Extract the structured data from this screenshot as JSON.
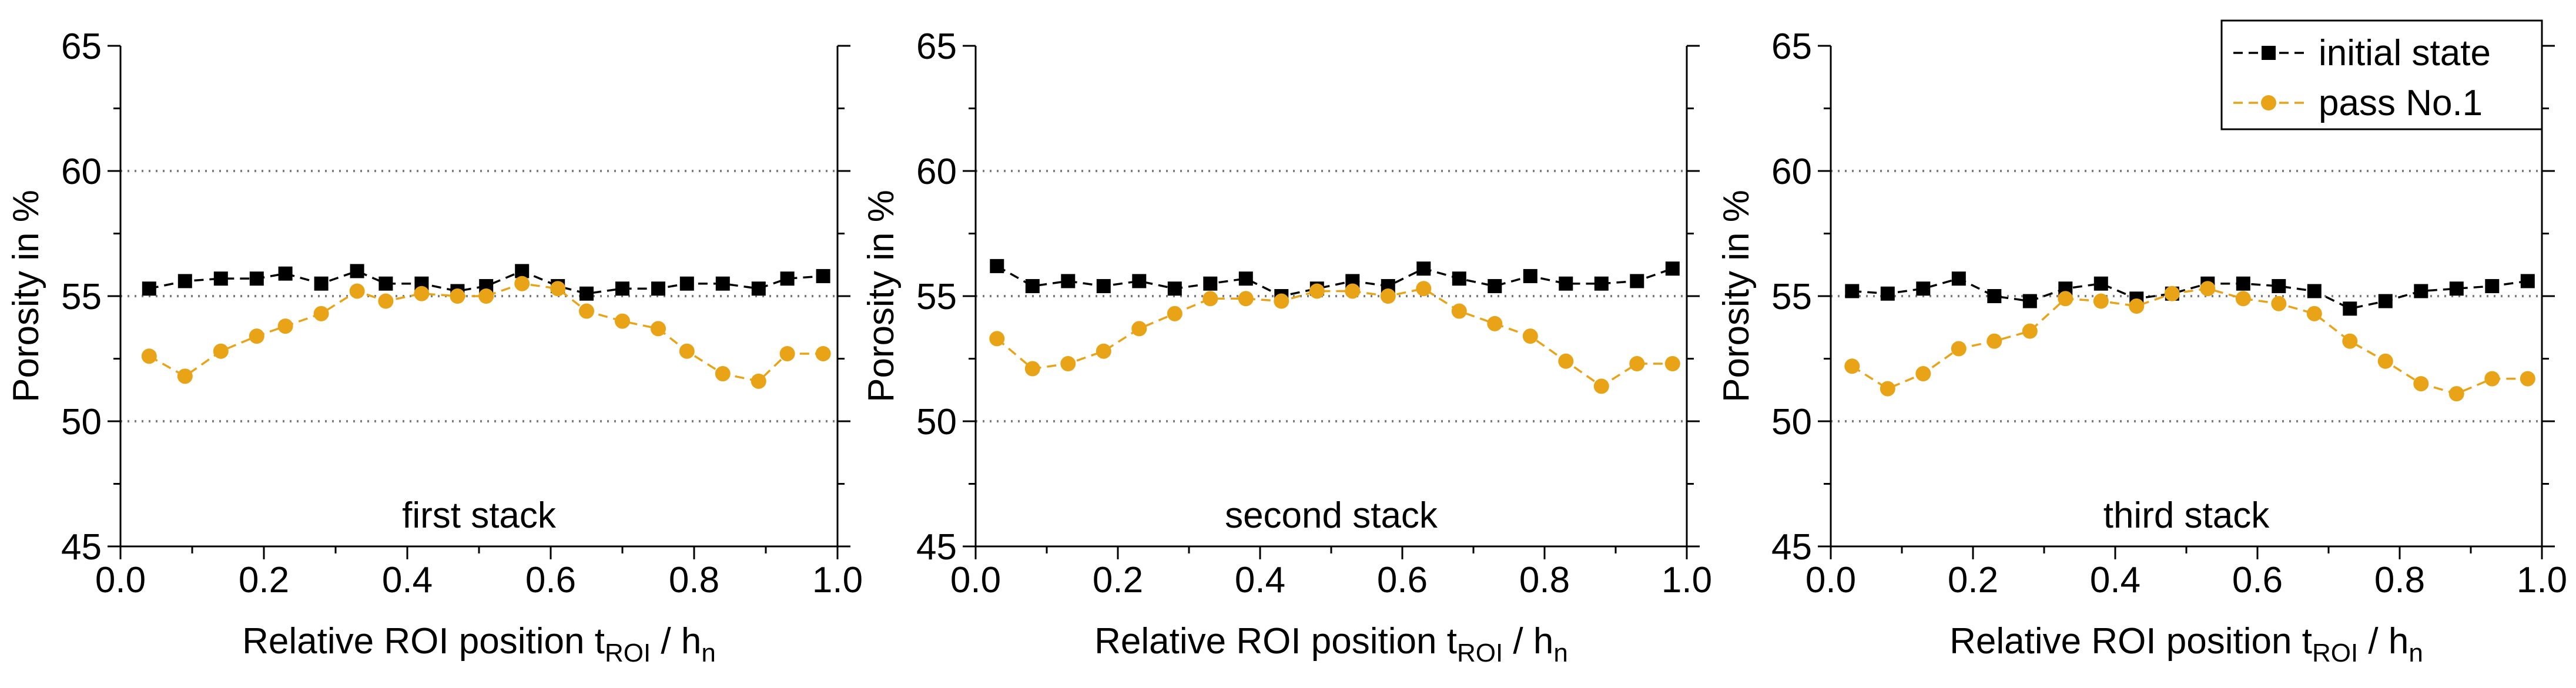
{
  "chart_data": [
    {
      "type": "line",
      "panel_label": "first stack",
      "xlabel": {
        "main": "Relative ROI position t",
        "sub1": "ROI",
        "mid": " / h",
        "sub2": "n"
      },
      "ylabel": "Porosity in %",
      "xlim": [
        0.0,
        1.0
      ],
      "ylim": [
        45,
        65
      ],
      "x_ticks": [
        "0.0",
        "0.2",
        "0.4",
        "0.6",
        "0.8",
        "1.0"
      ],
      "y_ticks": [
        "45",
        "50",
        "55",
        "60",
        "65"
      ],
      "reference_lines": [
        50,
        55,
        60
      ],
      "series": [
        {
          "name": "initial state",
          "color": "#000000",
          "marker": "square",
          "x": [
            0.04,
            0.09,
            0.14,
            0.19,
            0.23,
            0.28,
            0.33,
            0.37,
            0.42,
            0.47,
            0.51,
            0.56,
            0.61,
            0.65,
            0.7,
            0.75,
            0.79,
            0.84,
            0.89,
            0.93,
            0.98
          ],
          "y": [
            55.3,
            55.6,
            55.7,
            55.7,
            55.9,
            55.5,
            56.0,
            55.5,
            55.5,
            55.2,
            55.4,
            56.0,
            55.4,
            55.1,
            55.3,
            55.3,
            55.5,
            55.5,
            55.3,
            55.7,
            55.8
          ]
        },
        {
          "name": "pass No.1",
          "color": "#E8A317",
          "marker": "circle",
          "x": [
            0.04,
            0.09,
            0.14,
            0.19,
            0.23,
            0.28,
            0.33,
            0.37,
            0.42,
            0.47,
            0.51,
            0.56,
            0.61,
            0.65,
            0.7,
            0.75,
            0.79,
            0.84,
            0.89,
            0.93,
            0.98
          ],
          "y": [
            52.6,
            51.8,
            52.8,
            53.4,
            53.8,
            54.3,
            55.2,
            54.8,
            55.1,
            55.0,
            55.0,
            55.5,
            55.3,
            54.4,
            54.0,
            53.7,
            52.8,
            51.9,
            51.6,
            52.7,
            52.7
          ]
        }
      ]
    },
    {
      "type": "line",
      "panel_label": "second stack",
      "xlabel": {
        "main": "Relative ROI position t",
        "sub1": "ROI",
        "mid": " / h",
        "sub2": "n"
      },
      "ylabel": "Porosity in %",
      "xlim": [
        0.0,
        1.0
      ],
      "ylim": [
        45,
        65
      ],
      "x_ticks": [
        "0.0",
        "0.2",
        "0.4",
        "0.6",
        "0.8",
        "1.0"
      ],
      "y_ticks": [
        "45",
        "50",
        "55",
        "60",
        "65"
      ],
      "reference_lines": [
        50,
        55,
        60
      ],
      "series": [
        {
          "name": "initial state",
          "color": "#000000",
          "marker": "square",
          "x": [
            0.03,
            0.08,
            0.13,
            0.18,
            0.23,
            0.28,
            0.33,
            0.38,
            0.43,
            0.48,
            0.53,
            0.58,
            0.63,
            0.68,
            0.73,
            0.78,
            0.83,
            0.88,
            0.93,
            0.98
          ],
          "y": [
            56.2,
            55.4,
            55.6,
            55.4,
            55.6,
            55.3,
            55.5,
            55.7,
            55.0,
            55.3,
            55.6,
            55.4,
            56.1,
            55.7,
            55.4,
            55.8,
            55.5,
            55.5,
            55.6,
            56.1
          ]
        },
        {
          "name": "pass No.1",
          "color": "#E8A317",
          "marker": "circle",
          "x": [
            0.03,
            0.08,
            0.13,
            0.18,
            0.23,
            0.28,
            0.33,
            0.38,
            0.43,
            0.48,
            0.53,
            0.58,
            0.63,
            0.68,
            0.73,
            0.78,
            0.83,
            0.88,
            0.93,
            0.98
          ],
          "y": [
            53.3,
            52.1,
            52.3,
            52.8,
            53.7,
            54.3,
            54.9,
            54.9,
            54.8,
            55.2,
            55.2,
            55.0,
            55.3,
            54.4,
            53.9,
            53.4,
            52.4,
            51.4,
            52.3,
            52.3
          ]
        }
      ]
    },
    {
      "type": "line",
      "panel_label": "third stack",
      "xlabel": {
        "main": "Relative ROI position t",
        "sub1": "ROI",
        "mid": " / h",
        "sub2": "n"
      },
      "ylabel": "Porosity in %",
      "xlim": [
        0.0,
        1.0
      ],
      "ylim": [
        45,
        65
      ],
      "x_ticks": [
        "0.0",
        "0.2",
        "0.4",
        "0.6",
        "0.8",
        "1.0"
      ],
      "y_ticks": [
        "45",
        "50",
        "55",
        "60",
        "65"
      ],
      "reference_lines": [
        50,
        55,
        60
      ],
      "legend_position": "top-right",
      "series": [
        {
          "name": "initial state",
          "color": "#000000",
          "marker": "square",
          "x": [
            0.03,
            0.08,
            0.13,
            0.18,
            0.23,
            0.28,
            0.33,
            0.38,
            0.43,
            0.48,
            0.53,
            0.58,
            0.63,
            0.68,
            0.73,
            0.78,
            0.83,
            0.88,
            0.93,
            0.98
          ],
          "y": [
            55.2,
            55.1,
            55.3,
            55.7,
            55.0,
            54.8,
            55.3,
            55.5,
            54.9,
            55.1,
            55.5,
            55.5,
            55.4,
            55.2,
            54.5,
            54.8,
            55.2,
            55.3,
            55.4,
            55.6
          ]
        },
        {
          "name": "pass No.1",
          "color": "#E8A317",
          "marker": "circle",
          "x": [
            0.03,
            0.08,
            0.13,
            0.18,
            0.23,
            0.28,
            0.33,
            0.38,
            0.43,
            0.48,
            0.53,
            0.58,
            0.63,
            0.68,
            0.73,
            0.78,
            0.83,
            0.88,
            0.93,
            0.98
          ],
          "y": [
            52.2,
            51.3,
            51.9,
            52.9,
            53.2,
            53.6,
            54.9,
            54.8,
            54.6,
            55.1,
            55.3,
            54.9,
            54.7,
            54.3,
            53.2,
            52.4,
            51.5,
            51.1,
            51.7,
            51.7
          ]
        }
      ]
    }
  ]
}
